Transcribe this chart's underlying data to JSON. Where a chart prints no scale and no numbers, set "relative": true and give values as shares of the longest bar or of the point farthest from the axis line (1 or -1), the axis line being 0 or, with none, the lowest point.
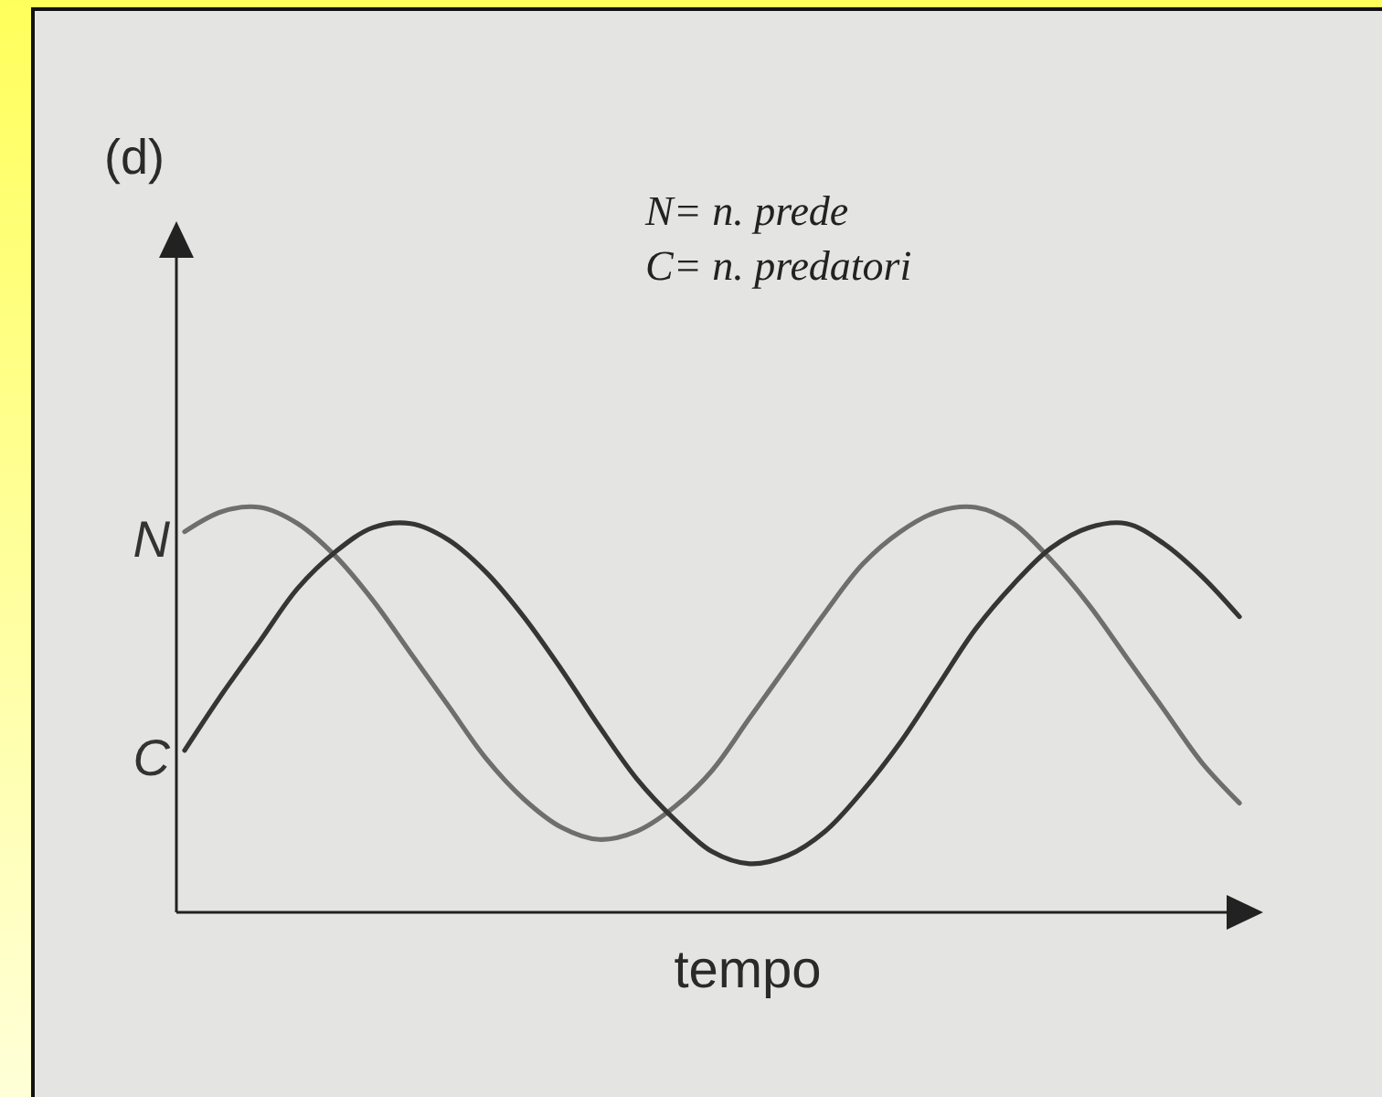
{
  "chart_data": {
    "type": "line",
    "title": "(d)",
    "xlabel": "tempo",
    "annotations": [
      "N= n. prede",
      "C= n. predatori"
    ],
    "relative": true,
    "line_style": "solid",
    "categories": [
      null,
      null,
      null,
      null,
      null,
      null,
      null,
      null,
      null,
      null,
      null,
      null,
      null,
      null,
      null,
      null,
      null,
      null,
      null,
      null,
      null,
      null,
      null,
      null,
      null,
      null,
      null,
      null,
      null
    ],
    "series": [
      {
        "name": "N",
        "color": "#6e6e6e",
        "values": [
          0.94,
          0.99,
          1.0,
          0.96,
          0.88,
          0.77,
          0.64,
          0.51,
          0.38,
          0.28,
          0.21,
          0.18,
          0.2,
          0.26,
          0.35,
          0.48,
          0.61,
          0.74,
          0.86,
          0.94,
          0.99,
          1.0,
          0.96,
          0.87,
          0.76,
          0.63,
          0.5,
          0.37,
          0.27
        ]
      },
      {
        "name": "C",
        "color": "#353535",
        "values": [
          0.4,
          0.54,
          0.67,
          0.8,
          0.89,
          0.95,
          0.96,
          0.92,
          0.84,
          0.73,
          0.6,
          0.46,
          0.33,
          0.23,
          0.15,
          0.12,
          0.14,
          0.2,
          0.3,
          0.42,
          0.56,
          0.7,
          0.81,
          0.9,
          0.95,
          0.96,
          0.91,
          0.83,
          0.73
        ]
      }
    ]
  }
}
